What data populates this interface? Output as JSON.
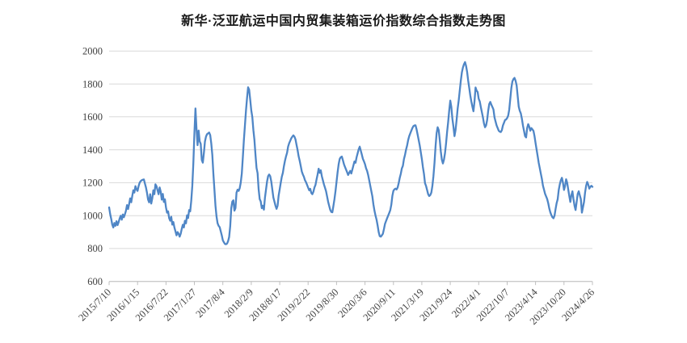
{
  "title": "新华·泛亚航运中国内贸集装箱运价指数综合指数走势图",
  "chart_data": {
    "type": "line",
    "title": "新华·泛亚航运中国内贸集装箱运价指数综合指数走势图",
    "series_name": "综合指数",
    "frequency": "weekly",
    "start_label": "2015/7/10",
    "end_label": "2024/4/26",
    "x_tick_labels": [
      "2015/7/10",
      "2016/1/15",
      "2016/7/22",
      "2017/1/27",
      "2017/8/4",
      "2018/2/9",
      "2018/8/17",
      "2019/2/22",
      "2019/8/30",
      "2020/3/6",
      "2020/9/11",
      "2021/3/19",
      "2021/9/24",
      "2022/4/1",
      "2022/10/7",
      "2023/4/14",
      "2023/10/20",
      "2024/4/26"
    ],
    "x_tick_every_n_points": 27,
    "y_ticks": [
      600,
      800,
      1000,
      1200,
      1400,
      1600,
      1800,
      2000
    ],
    "ylim": [
      600,
      2000
    ],
    "grid": "horizontal",
    "legend": "none",
    "values": [
      1050,
      1010,
      980,
      945,
      928,
      955,
      938,
      966,
      942,
      960,
      982,
      999,
      975,
      1007,
      990,
      1008,
      1030,
      1064,
      1040,
      1070,
      1105,
      1081,
      1120,
      1154,
      1140,
      1179,
      1160,
      1150,
      1179,
      1200,
      1210,
      1215,
      1218,
      1220,
      1195,
      1171,
      1138,
      1097,
      1081,
      1130,
      1073,
      1105,
      1154,
      1130,
      1190,
      1179,
      1154,
      1130,
      1171,
      1146,
      1097,
      1132,
      1083,
      1099,
      1050,
      1018,
      1026,
      985,
      969,
      993,
      945,
      961,
      928,
      905,
      880,
      900,
      890,
      872,
      890,
      920,
      945,
      928,
      969,
      953,
      1002,
      985,
      1034,
      1026,
      1090,
      1180,
      1320,
      1500,
      1651,
      1526,
      1428,
      1517,
      1452,
      1436,
      1338,
      1322,
      1380,
      1450,
      1480,
      1495,
      1500,
      1505,
      1490,
      1440,
      1370,
      1256,
      1160,
      1060,
      995,
      954,
      938,
      930,
      905,
      880,
      850,
      838,
      828,
      826,
      830,
      845,
      870,
      935,
      1045,
      1085,
      1093,
      1030,
      1046,
      1140,
      1158,
      1150,
      1166,
      1200,
      1255,
      1355,
      1460,
      1550,
      1640,
      1715,
      1780,
      1765,
      1705,
      1640,
      1599,
      1520,
      1460,
      1370,
      1290,
      1258,
      1160,
      1100,
      1086,
      1045,
      1060,
      1036,
      1109,
      1158,
      1207,
      1240,
      1250,
      1240,
      1207,
      1158,
      1110,
      1085,
      1060,
      1041,
      1060,
      1122,
      1160,
      1200,
      1236,
      1260,
      1300,
      1333,
      1360,
      1382,
      1420,
      1440,
      1455,
      1470,
      1480,
      1488,
      1480,
      1463,
      1430,
      1398,
      1360,
      1333,
      1301,
      1268,
      1250,
      1236,
      1215,
      1203,
      1187,
      1170,
      1154,
      1163,
      1138,
      1130,
      1145,
      1171,
      1187,
      1220,
      1250,
      1285,
      1260,
      1276,
      1240,
      1215,
      1190,
      1170,
      1149,
      1117,
      1084,
      1059,
      1035,
      1022,
      1020,
      1059,
      1100,
      1149,
      1207,
      1264,
      1313,
      1345,
      1355,
      1359,
      1337,
      1313,
      1296,
      1280,
      1264,
      1247,
      1260,
      1272,
      1256,
      1280,
      1305,
      1329,
      1321,
      1354,
      1378,
      1403,
      1419,
      1395,
      1371,
      1345,
      1330,
      1313,
      1288,
      1272,
      1247,
      1215,
      1182,
      1149,
      1117,
      1068,
      1030,
      1000,
      975,
      940,
      900,
      875,
      872,
      880,
      890,
      918,
      950,
      967,
      984,
      1000,
      1016,
      1033,
      1066,
      1120,
      1151,
      1160,
      1164,
      1159,
      1171,
      1197,
      1229,
      1254,
      1287,
      1303,
      1344,
      1369,
      1401,
      1426,
      1459,
      1483,
      1500,
      1516,
      1532,
      1544,
      1548,
      1549,
      1524,
      1492,
      1459,
      1426,
      1385,
      1344,
      1295,
      1254,
      1197,
      1180,
      1155,
      1130,
      1119,
      1125,
      1140,
      1180,
      1240,
      1320,
      1420,
      1500,
      1537,
      1520,
      1460,
      1390,
      1340,
      1317,
      1340,
      1380,
      1440,
      1510,
      1570,
      1640,
      1699,
      1660,
      1589,
      1540,
      1483,
      1520,
      1581,
      1650,
      1700,
      1760,
      1820,
      1870,
      1900,
      1920,
      1933,
      1910,
      1873,
      1820,
      1776,
      1730,
      1694,
      1662,
      1634,
      1694,
      1779,
      1760,
      1751,
      1710,
      1694,
      1660,
      1629,
      1597,
      1560,
      1537,
      1548,
      1581,
      1637,
      1678,
      1691,
      1674,
      1660,
      1645,
      1597,
      1572,
      1548,
      1532,
      1516,
      1510,
      1508,
      1520,
      1548,
      1564,
      1581,
      1584,
      1593,
      1608,
      1645,
      1711,
      1776,
      1816,
      1830,
      1837,
      1820,
      1792,
      1727,
      1662,
      1637,
      1621,
      1589,
      1548,
      1516,
      1483,
      1475,
      1532,
      1556,
      1540,
      1516,
      1532,
      1524,
      1515,
      1483,
      1440,
      1400,
      1361,
      1320,
      1288,
      1255,
      1223,
      1182,
      1158,
      1133,
      1117,
      1101,
      1076,
      1044,
      1020,
      1003,
      990,
      984,
      1000,
      1040,
      1076,
      1100,
      1156,
      1190,
      1215,
      1230,
      1200,
      1156,
      1180,
      1221,
      1200,
      1160,
      1120,
      1083,
      1124,
      1148,
      1100,
      1060,
      1034,
      1083,
      1132,
      1148,
      1124,
      1100,
      1018,
      1050,
      1083,
      1140,
      1181,
      1205,
      1189,
      1164,
      1175,
      1181,
      1175
    ],
    "colors": {
      "line": "#4F86C6",
      "gridline": "#D9D9D9",
      "axis": "#BFBFBF",
      "label": "#404040",
      "title": "#1A1A1A",
      "background": "#FFFFFF"
    }
  }
}
